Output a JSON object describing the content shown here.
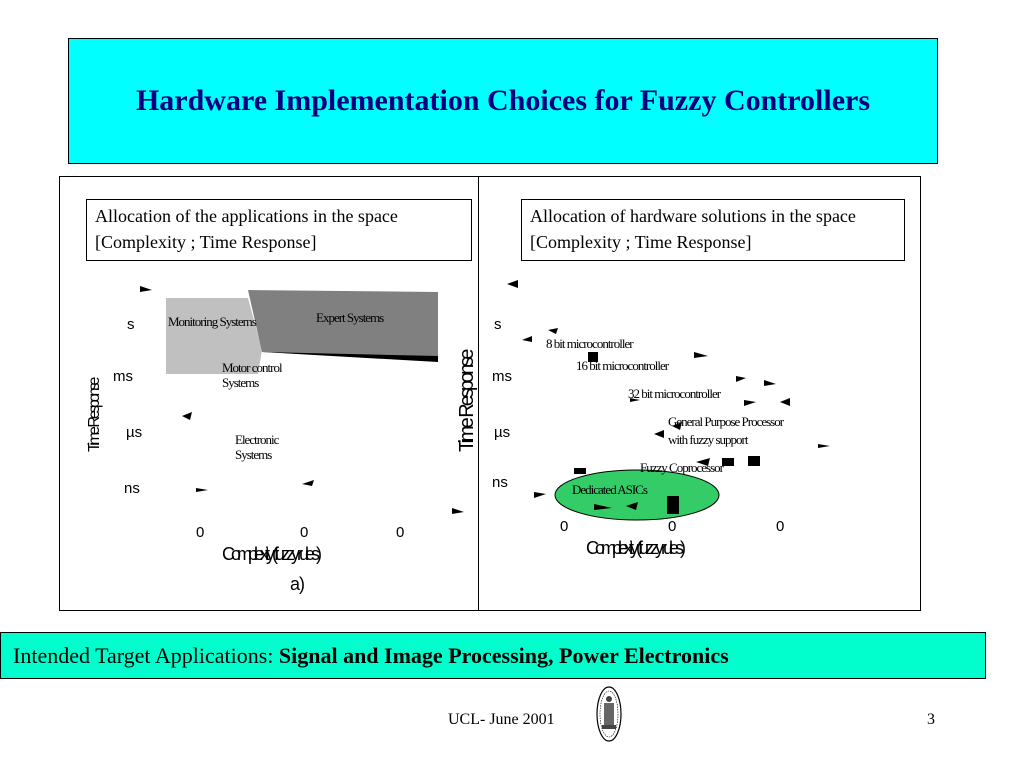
{
  "title": "Hardware Implementation Choices for Fuzzy Controllers",
  "left_panel": {
    "caption": "Allocation of  the applications in the space  [Complexity ; Time Response]",
    "y_axis_label": "Time Response",
    "x_axis_label": "Complexity (fuzzy rules)",
    "sub_label": "a)",
    "y_ticks": [
      "s",
      "ms",
      "µs",
      "ns"
    ],
    "x_ticks": [
      "0",
      "0",
      "0"
    ],
    "regions": [
      {
        "label": "Monitoring Systems",
        "color": "#c0c0c0"
      },
      {
        "label": "Expert Systems",
        "color": "#808080"
      },
      {
        "label": "Motor control Systems",
        "color": ""
      },
      {
        "label": "Electronic Systems",
        "color": ""
      }
    ]
  },
  "right_panel": {
    "caption": "Allocation of hardware solutions in the space  [Complexity ; Time Response]",
    "y_axis_label": "Time Response",
    "x_axis_label": "Complexity (fuzzy rules)",
    "y_ticks": [
      "s",
      "ms",
      "µs",
      "ns"
    ],
    "x_ticks": [
      "0",
      "0",
      "0"
    ],
    "solutions": [
      {
        "label": "8 bit microcontroller"
      },
      {
        "label": "16 bit microcontroller"
      },
      {
        "label": "32 bit microcontroller"
      },
      {
        "label": "General Purpose Processor"
      },
      {
        "label": "with fuzzy support"
      },
      {
        "label": "Fuzzy Coprocessor"
      },
      {
        "label": "Dedicated ASICs",
        "color": "#33cc66"
      }
    ]
  },
  "bottom_banner": {
    "prefix": "Intended Target Applications: ",
    "emphasis": "Signal and Image Processing, Power Electronics"
  },
  "footer": {
    "center": "UCL- June 2001",
    "page": "3"
  },
  "seal_icon": "university-seal-icon"
}
